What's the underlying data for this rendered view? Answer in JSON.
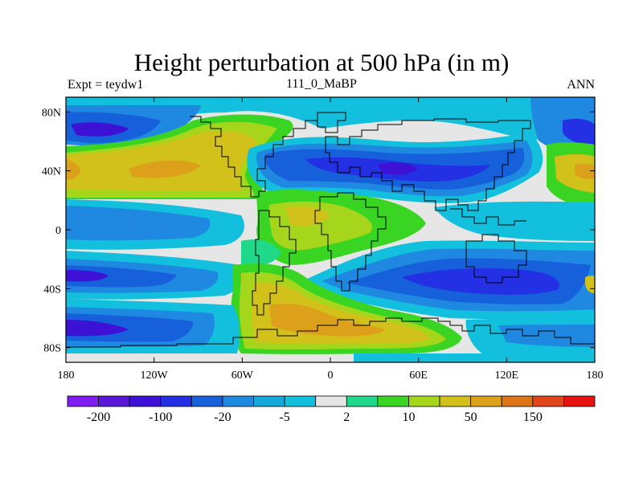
{
  "chart_data": {
    "type": "heatmap",
    "title": "Height perturbation at 500 hPa (in m)",
    "left_label": "Expt = teydw1",
    "center_label": "111_0_MaBP",
    "right_label": "ANN",
    "x_ticks": [
      "180",
      "120W",
      "60W",
      "0",
      "60E",
      "120E",
      "180"
    ],
    "x_tick_values": [
      -180,
      -120,
      -60,
      0,
      60,
      120,
      180
    ],
    "y_ticks": [
      "80N",
      "40N",
      "0",
      "40S",
      "80S"
    ],
    "y_tick_values": [
      80,
      40,
      0,
      -40,
      -80
    ],
    "xlim": [
      -180,
      180
    ],
    "ylim": [
      -90,
      90
    ],
    "colorbar": {
      "colors": [
        "#7f1cf0",
        "#5a17d9",
        "#3e12d6",
        "#2430e4",
        "#1660dc",
        "#1f88e0",
        "#15a8dc",
        "#12c0dd",
        "#e6e6e6",
        "#1fd88a",
        "#3ad422",
        "#a6d61c",
        "#d2c01b",
        "#dda01a",
        "#dd7416",
        "#e0461a",
        "#e61212"
      ],
      "labels": [
        "-200",
        "-100",
        "-20",
        "-5",
        "2",
        "10",
        "50",
        "150"
      ]
    },
    "colors": {
      "white": "#e6e6e6",
      "pos1": "#1fd88a",
      "pos2": "#3ad422",
      "pos3": "#a6d61c",
      "pos4": "#d2c01b",
      "pos5": "#dda01a",
      "neg1": "#12c0dd",
      "neg2": "#15a8dc",
      "neg3": "#1f88e0",
      "neg4": "#1660dc",
      "neg5": "#2430e4",
      "neg6": "#3e12d6"
    }
  }
}
